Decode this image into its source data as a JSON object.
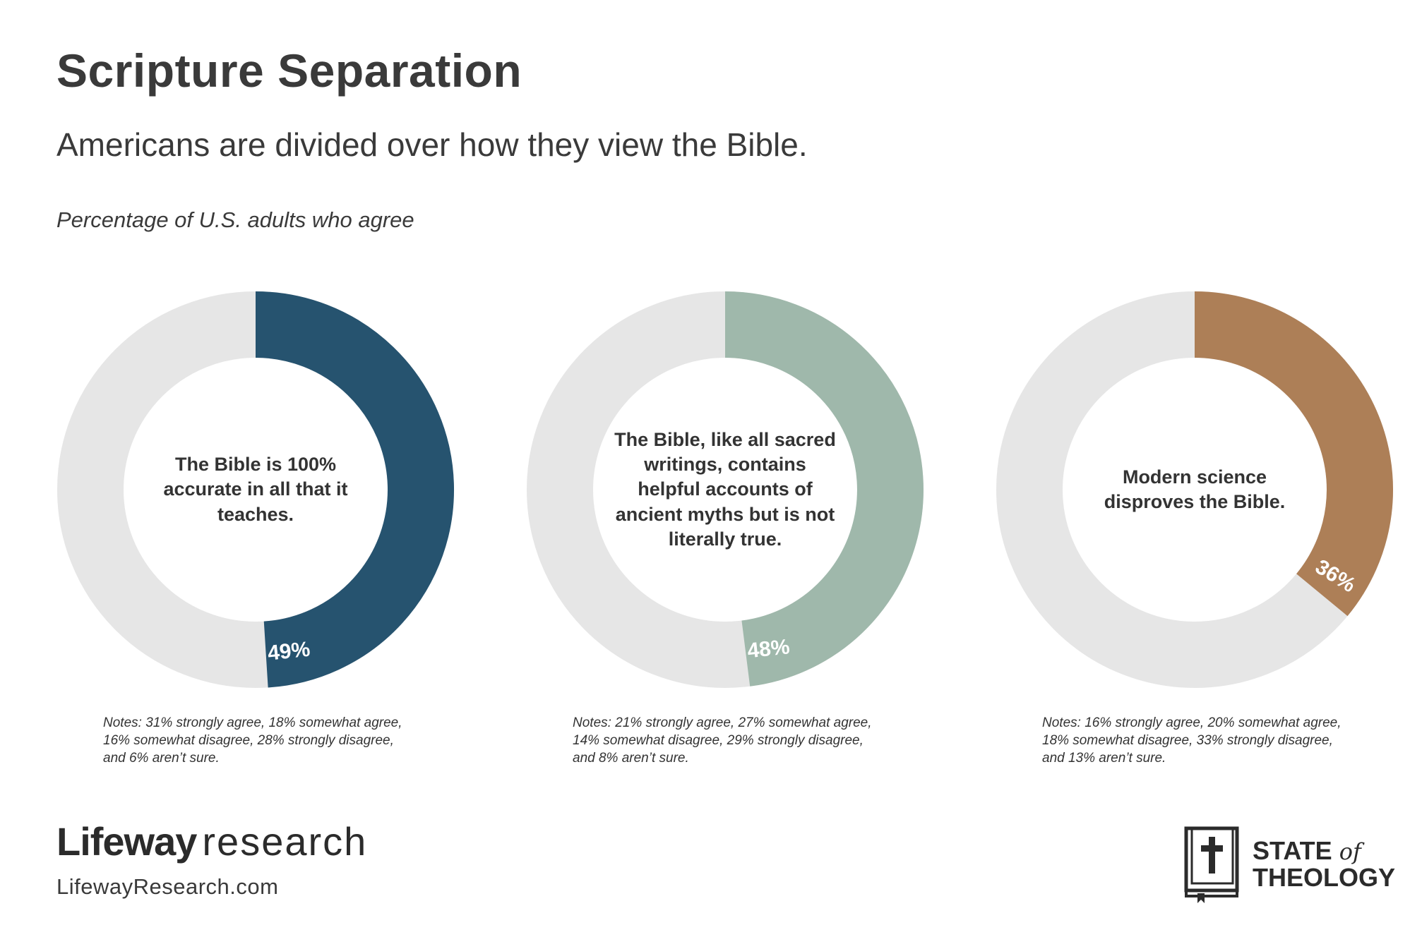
{
  "header": {
    "title": "Scripture Separation",
    "subtitle": "Americans are divided over how they view the Bible.",
    "caption": "Percentage of U.S. adults who agree"
  },
  "colors": {
    "track": "#e6e6e6",
    "series": [
      "#26536f",
      "#9fb8ab",
      "#ad7f57"
    ],
    "label_text": "#ffffff"
  },
  "chart_data": [
    {
      "type": "pie",
      "style": "donut",
      "statement": "The Bible is 100% accurate in all that it teaches.",
      "value": 49,
      "value_label": "49%",
      "notes": "Notes: 31% strongly agree, 18% somewhat agree, 16% somewhat disagree, 28% strongly disagree, and 6% aren’t sure."
    },
    {
      "type": "pie",
      "style": "donut",
      "statement": "The Bible, like all sacred writings, contains helpful accounts of ancient myths but is not literally true.",
      "value": 48,
      "value_label": "48%",
      "notes": "Notes: 21% strongly agree, 27% somewhat agree, 14% somewhat disagree, 29% strongly disagree, and 8% aren’t sure."
    },
    {
      "type": "pie",
      "style": "donut",
      "statement": "Modern science disproves the Bible.",
      "value": 36,
      "value_label": "36%",
      "notes": "Notes: 16% strongly agree, 20% somewhat agree, 18% somewhat disagree, 33% strongly disagree, and 13% aren’t sure."
    }
  ],
  "footer": {
    "brand_left_strong": "Lifeway",
    "brand_left_light": "research",
    "brand_url": "LifewayResearch.com",
    "brand_right_line1": "STATE",
    "brand_right_of": "of",
    "brand_right_line2": "THEOLOGY",
    "brand_right_icon": "bible-cross-icon"
  }
}
